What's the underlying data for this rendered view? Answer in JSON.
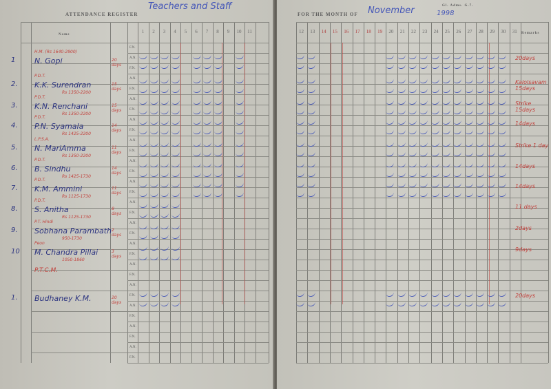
{
  "left_page": {
    "printed_title": "ATTENDANCE REGISTER",
    "handwritten_title": "Teachers and Staff",
    "name_header": "Name",
    "days": [
      "1",
      "2",
      "3",
      "4",
      "5",
      "6",
      "7",
      "8",
      "9",
      "10",
      "11"
    ],
    "session_labels": [
      "F.N.",
      "A.N."
    ]
  },
  "right_page": {
    "printed_title": "FOR THE MONTH OF",
    "month": "November",
    "year": "1998",
    "form_code": "Gl. Adms. G.7.",
    "days": [
      "12",
      "13",
      "14",
      "15",
      "16",
      "17",
      "18",
      "19",
      "20",
      "21",
      "22",
      "23",
      "24",
      "25",
      "26",
      "27",
      "28",
      "29",
      "30",
      "31"
    ],
    "remarks_header": "Remarks"
  },
  "employees": [
    {
      "no": "1",
      "name": "N. Gopi",
      "post": "H.M. (Rs 1640-2900)",
      "scale": "",
      "days": "20 days",
      "remark": "20days"
    },
    {
      "no": "2.",
      "name": "K.K. Surendran",
      "post": "P.D.T.",
      "scale": "Rs 1350-2200",
      "days": "15 days",
      "remark": "Kalolsavam 15days"
    },
    {
      "no": "3.",
      "name": "K.N. Renchani",
      "post": "P.D.T.",
      "scale": "Rs 1350-2200",
      "days": "15 days",
      "remark": "Strike 15days"
    },
    {
      "no": "4.",
      "name": "P.N. Syamala",
      "post": "P.D.T.",
      "scale": "Rs 1425-2200",
      "days": "14 days",
      "remark": "14days"
    },
    {
      "no": "5.",
      "name": "N. MariAmma",
      "post": "L.P.S.A.",
      "scale": "Rs 1350-2200",
      "days": "11 days",
      "remark": "Strike 1 day"
    },
    {
      "no": "6.",
      "name": "B. Sindhu",
      "post": "P.D.T.",
      "scale": "Rs 1425-1730",
      "days": "14 days",
      "remark": "14days"
    },
    {
      "no": "7.",
      "name": "K.M. Ammini",
      "post": "P.D.T.",
      "scale": "Rs 1125-1730",
      "days": "11 days",
      "remark": "14days"
    },
    {
      "no": "8.",
      "name": "S. Anitha",
      "post": "P.D.T.",
      "scale": "Rs 1125-1730",
      "days": "8 days",
      "remark": "11 days"
    },
    {
      "no": "9.",
      "name": "Sobhana Parambath",
      "post": "P.T. Hindi",
      "scale": "950-1730",
      "days": "2 days",
      "remark": "2days"
    },
    {
      "no": "10",
      "name": "M. Chandra Pillai",
      "post": "Peon",
      "scale": "1050-1860",
      "days": "3 days",
      "remark": "9days"
    },
    {
      "no": "",
      "name": "",
      "post": "P.T.C.M.",
      "scale": "",
      "days": "",
      "remark": ""
    },
    {
      "no": "1.",
      "name": "Budhaney K.M.",
      "post": "",
      "scale": "",
      "days": "20 days",
      "remark": "20days"
    }
  ],
  "colors": {
    "paper": "#c9c8c1",
    "ink_blue": "#4456b8",
    "ink_red": "#c2413c",
    "grid": "#7d7d78"
  }
}
